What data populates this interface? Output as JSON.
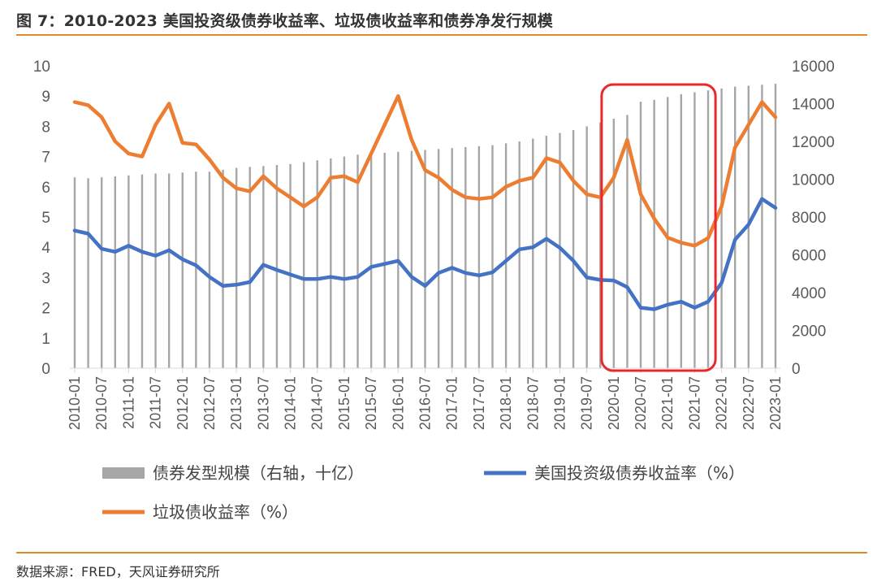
{
  "header": {
    "title": "图 7：2010-2023 美国投资级债券收益率、垃圾债收益率和债券净发行规模"
  },
  "footer": {
    "source": "数据来源：FRED，天风证券研究所"
  },
  "colors": {
    "issuance": "#a6a6a6",
    "ig_yield": "#4472c4",
    "junk_yield": "#ed7d31",
    "highlight_box": "#e8292b",
    "rule": "#e08a2e"
  },
  "chart_data": {
    "type": "bar+line",
    "x": [
      "2010-01",
      "2010-04",
      "2010-07",
      "2010-10",
      "2011-01",
      "2011-04",
      "2011-07",
      "2011-10",
      "2012-01",
      "2012-04",
      "2012-07",
      "2012-10",
      "2013-01",
      "2013-04",
      "2013-07",
      "2013-10",
      "2014-01",
      "2014-04",
      "2014-07",
      "2014-10",
      "2015-01",
      "2015-04",
      "2015-07",
      "2015-10",
      "2016-01",
      "2016-04",
      "2016-07",
      "2016-10",
      "2017-01",
      "2017-04",
      "2017-07",
      "2017-10",
      "2018-01",
      "2018-04",
      "2018-07",
      "2018-10",
      "2019-01",
      "2019-04",
      "2019-07",
      "2019-10",
      "2020-01",
      "2020-04",
      "2020-07",
      "2020-10",
      "2021-01",
      "2021-04",
      "2021-07",
      "2021-10",
      "2022-01",
      "2022-04",
      "2022-07",
      "2022-10",
      "2023-01"
    ],
    "x_tick_labels": [
      "2010-01",
      "2010-07",
      "2011-01",
      "2011-07",
      "2012-01",
      "2012-07",
      "2013-01",
      "2013-07",
      "2014-01",
      "2014-07",
      "2015-01",
      "2015-07",
      "2016-01",
      "2016-07",
      "2017-01",
      "2017-07",
      "2018-01",
      "2018-07",
      "2019-01",
      "2019-07",
      "2020-01",
      "2020-07",
      "2021-01",
      "2021-07",
      "2022-01",
      "2022-07",
      "2023-01"
    ],
    "y_left": {
      "ticks": [
        0,
        1,
        2,
        3,
        4,
        5,
        6,
        7,
        8,
        9,
        10
      ],
      "ylim": [
        0,
        10
      ]
    },
    "y_right": {
      "ticks": [
        0,
        2000,
        4000,
        6000,
        8000,
        10000,
        12000,
        14000,
        16000
      ],
      "ylim": [
        0,
        16000
      ]
    },
    "series": [
      {
        "name": "债券发型规模（右轴，十亿）",
        "type": "bar",
        "axis": "right",
        "values": [
          10100,
          10050,
          10100,
          10150,
          10200,
          10250,
          10300,
          10300,
          10350,
          10400,
          10400,
          10500,
          10600,
          10650,
          10700,
          10750,
          10800,
          10900,
          11000,
          11100,
          11200,
          11300,
          11350,
          11400,
          11450,
          11500,
          11550,
          11600,
          11650,
          11700,
          11750,
          11800,
          11900,
          12000,
          12150,
          12300,
          12450,
          12600,
          12800,
          13000,
          13200,
          13400,
          14100,
          14200,
          14350,
          14500,
          14600,
          14700,
          14800,
          14900,
          14950,
          15000,
          15050
        ]
      },
      {
        "name": "美国投资级债券收益率（%）",
        "type": "line",
        "axis": "left",
        "values": [
          4.55,
          4.45,
          3.95,
          3.85,
          4.05,
          3.85,
          3.72,
          3.9,
          3.6,
          3.4,
          3.02,
          2.72,
          2.76,
          2.85,
          3.42,
          3.25,
          3.1,
          2.95,
          2.95,
          3.02,
          2.95,
          3.02,
          3.35,
          3.45,
          3.55,
          3.02,
          2.72,
          3.15,
          3.32,
          3.15,
          3.07,
          3.17,
          3.55,
          3.93,
          4.0,
          4.28,
          3.98,
          3.55,
          3.0,
          2.92,
          2.9,
          2.68,
          2.0,
          1.95,
          2.1,
          2.2,
          2.0,
          2.2,
          2.82,
          4.25,
          4.75,
          5.6,
          5.3
        ]
      },
      {
        "name": "垃圾债收益率（%）",
        "type": "line",
        "axis": "left",
        "values": [
          8.8,
          8.7,
          8.3,
          7.5,
          7.1,
          7.0,
          8.05,
          8.75,
          7.45,
          7.4,
          6.9,
          6.3,
          5.95,
          5.85,
          6.35,
          5.95,
          5.65,
          5.35,
          5.65,
          6.3,
          6.35,
          6.15,
          7.1,
          8.05,
          9.0,
          7.55,
          6.55,
          6.3,
          5.9,
          5.65,
          5.6,
          5.65,
          6.0,
          6.2,
          6.3,
          6.95,
          6.8,
          6.2,
          5.75,
          5.65,
          6.3,
          7.55,
          5.75,
          4.95,
          4.32,
          4.15,
          4.05,
          4.3,
          5.35,
          7.3,
          8.05,
          8.8,
          8.3
        ]
      }
    ],
    "highlight": {
      "x_start": "2019-10",
      "x_end": "2021-10"
    }
  }
}
